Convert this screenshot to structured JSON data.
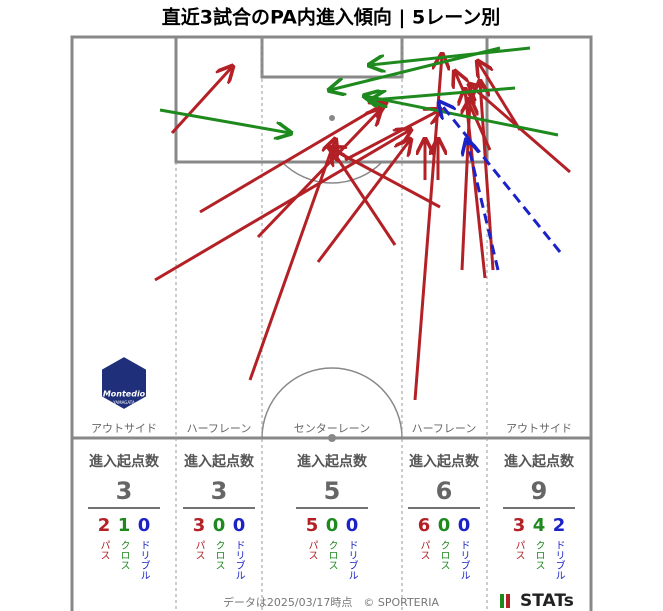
{
  "title": "直近3試合のPA内進入傾向 | 5レーン別",
  "logo": {
    "name": "Montedio",
    "sub": "YAMAGATA"
  },
  "lanes": [
    {
      "name": "アウトサイド",
      "header": "進入起点数",
      "total": 3,
      "counts": [
        {
          "value": 2,
          "label": "パス"
        },
        {
          "value": 1,
          "label": "クロス"
        },
        {
          "value": 0,
          "label": "ドリブル"
        }
      ]
    },
    {
      "name": "ハーフレーン",
      "header": "進入起点数",
      "total": 3,
      "counts": [
        {
          "value": 3,
          "label": "パス"
        },
        {
          "value": 0,
          "label": "クロス"
        },
        {
          "value": 0,
          "label": "ドリブル"
        }
      ]
    },
    {
      "name": "センターレーン",
      "header": "進入起点数",
      "total": 5,
      "counts": [
        {
          "value": 5,
          "label": "パス"
        },
        {
          "value": 0,
          "label": "クロス"
        },
        {
          "value": 0,
          "label": "ドリブル"
        }
      ]
    },
    {
      "name": "ハーフレーン",
      "header": "進入起点数",
      "total": 6,
      "counts": [
        {
          "value": 6,
          "label": "パス"
        },
        {
          "value": 0,
          "label": "クロス"
        },
        {
          "value": 0,
          "label": "ドリブル"
        }
      ]
    },
    {
      "name": "アウトサイド",
      "header": "進入起点数",
      "total": 9,
      "counts": [
        {
          "value": 3,
          "label": "パス"
        },
        {
          "value": 4,
          "label": "クロス"
        },
        {
          "value": 2,
          "label": "ドリブル"
        }
      ]
    }
  ],
  "footer": "データは2025/03/17時点　© SPORTERIA",
  "brand": "STATs"
}
